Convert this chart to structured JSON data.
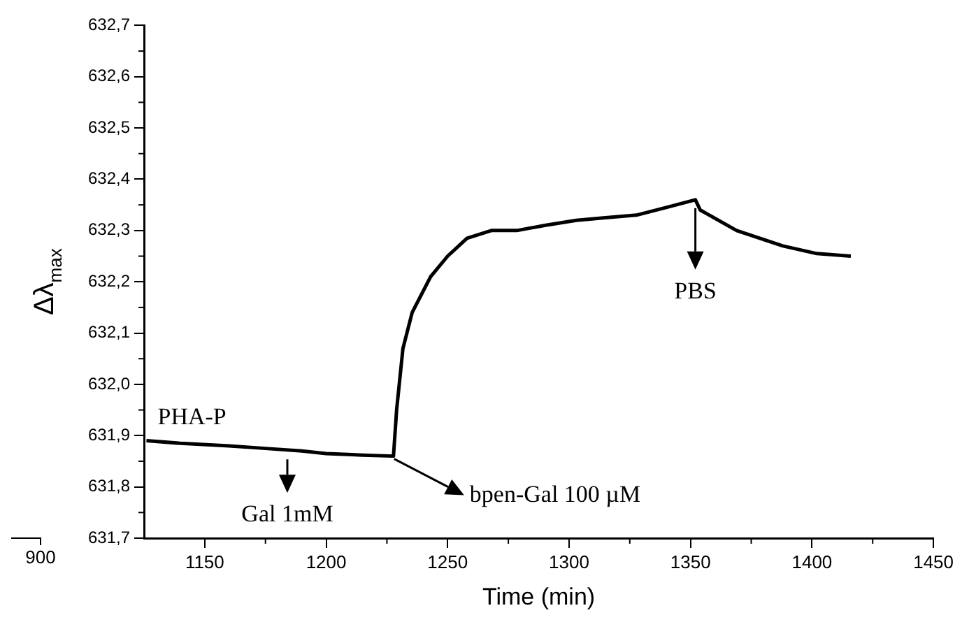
{
  "chart_data": {
    "type": "line",
    "xlabel": "Time (min)",
    "ylabel": "Δλ$_{max}$",
    "x": [
      1126,
      1140,
      1160,
      1175,
      1190,
      1200,
      1215,
      1227.7,
      1229,
      1231.6,
      1235.4,
      1243,
      1250,
      1258,
      1268,
      1278.5,
      1290,
      1303,
      1315,
      1327.7,
      1340,
      1352,
      1354,
      1369,
      1388,
      1402,
      1416
    ],
    "series": [
      {
        "color": "#000000",
        "values": [
          631.89,
          631.885,
          631.88,
          631.875,
          631.87,
          631.865,
          631.862,
          631.86,
          631.95,
          632.07,
          632.14,
          632.21,
          632.25,
          632.285,
          632.3,
          632.3,
          632.31,
          632.32,
          632.325,
          632.33,
          632.345,
          632.36,
          632.34,
          632.3,
          632.27,
          632.255,
          632.25
        ]
      }
    ],
    "xlim": [
      1125,
      1450
    ],
    "xticks": [
      1150,
      1200,
      1250,
      1300,
      1350,
      1400,
      1450
    ],
    "ylim": [
      631.7,
      632.7
    ],
    "yticks": [
      {
        "value": 631.7,
        "label": "631,7"
      },
      {
        "value": 631.8,
        "label": "631,8"
      },
      {
        "value": 631.9,
        "label": "631,9"
      },
      {
        "value": 632.0,
        "label": "632,0"
      },
      {
        "value": 632.1,
        "label": "632,1"
      },
      {
        "value": 632.2,
        "label": "632,2"
      },
      {
        "value": 632.3,
        "label": "632,3"
      },
      {
        "value": 632.4,
        "label": "632,4"
      },
      {
        "value": 632.5,
        "label": "632,5"
      },
      {
        "value": 632.6,
        "label": "632,6"
      },
      {
        "value": 632.7,
        "label": "632,7"
      }
    ],
    "annotations": [
      "PHA-P",
      {
        "text": "Gal 1mM",
        "x": 1184,
        "y": 631.87
      },
      {
        "text": "bpen-Gal 100 µM",
        "x": 1228,
        "y": 631.86
      },
      {
        "text": "PBS",
        "x": 1352,
        "y": 632.36
      },
      "900"
    ],
    "grid": false,
    "legend": false,
    "marker": "none",
    "line_style": "solid"
  }
}
